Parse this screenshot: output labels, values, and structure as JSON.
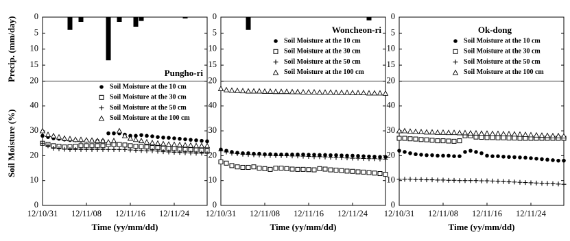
{
  "chart_data": [
    {
      "type": "combo",
      "title": "Pungho-ri",
      "xlabel": "Time (yy/mm/dd)",
      "ylabel_top": "Precip. (mm/day)",
      "ylabel": "Soil Moisture (%)",
      "x": [
        "12/10/31",
        "12/11/01",
        "12/11/02",
        "12/11/03",
        "12/11/04",
        "12/11/05",
        "12/11/06",
        "12/11/07",
        "12/11/08",
        "12/11/09",
        "12/11/10",
        "12/11/11",
        "12/11/12",
        "12/11/13",
        "12/11/14",
        "12/11/15",
        "12/11/16",
        "12/11/17",
        "12/11/18",
        "12/11/19",
        "12/11/20",
        "12/11/21",
        "12/11/22",
        "12/11/23",
        "12/11/24",
        "12/11/25",
        "12/11/26",
        "12/11/27",
        "12/11/28",
        "12/11/29",
        "12/11/30"
      ],
      "xlim": [
        "12/10/31",
        "12/11/30"
      ],
      "xticks": [
        "12/10/31",
        "12/11/08",
        "12/11/16",
        "12/11/24"
      ],
      "precip": {
        "x": [
          "12/11/05",
          "12/11/07",
          "12/11/12",
          "12/11/14",
          "12/11/17",
          "12/11/18",
          "12/11/26"
        ],
        "values": [
          4,
          1.5,
          13.5,
          1.5,
          3,
          1.2,
          0.4
        ],
        "ylim": [
          0,
          20
        ],
        "yticks": [
          0,
          5,
          10,
          15,
          20
        ],
        "color": "#000000"
      },
      "ylim": [
        0,
        50
      ],
      "yticks": [
        0,
        10,
        20,
        30,
        40
      ],
      "series": [
        {
          "name": "Soil Moisture at the 10 cm",
          "marker": "circle",
          "color": "#000000",
          "values": [
            28,
            27.5,
            27,
            26.8,
            26.5,
            26.3,
            26.2,
            26,
            26,
            26,
            26,
            26,
            29,
            29,
            29,
            28.5,
            28,
            28,
            28.3,
            28,
            27.8,
            27.5,
            27.3,
            27.2,
            27,
            26.8,
            26.6,
            26.4,
            26.2,
            26,
            25.8
          ]
        },
        {
          "name": "Soil Moisture at the 30 cm",
          "marker": "square",
          "color": "#000000",
          "values": [
            25,
            24.5,
            24,
            23.8,
            23.5,
            23.6,
            23.8,
            24,
            24,
            24,
            24,
            24,
            24.5,
            24.5,
            24.5,
            24.3,
            24,
            23.8,
            23.6,
            23.5,
            23.3,
            23.2,
            23,
            22.9,
            22.8,
            22.6,
            22.5,
            22.4,
            22.3,
            22.2,
            22
          ]
        },
        {
          "name": "Soil Moisture at the 50 cm",
          "marker": "plus",
          "color": "#000000",
          "values": [
            25,
            24,
            23,
            22.8,
            22.6,
            22.5,
            22.5,
            22.5,
            22.5,
            22.5,
            22.5,
            22.5,
            22.5,
            22.5,
            22.5,
            22.5,
            22.3,
            22.2,
            22.1,
            22,
            22,
            21.8,
            21.6,
            21.5,
            21.4,
            21.3,
            21.2,
            21.1,
            21,
            21,
            21
          ]
        },
        {
          "name": "Soil Moisture at the 100 cm",
          "marker": "triangle",
          "color": "#000000",
          "values": [
            30,
            28.5,
            28,
            27.5,
            27,
            26.8,
            26.5,
            26.5,
            26.3,
            26.2,
            26,
            26,
            25.5,
            26,
            30,
            28,
            27,
            26.5,
            26,
            25.5,
            25.2,
            25,
            24.8,
            24.6,
            24.5,
            24.4,
            24.3,
            24.2,
            24,
            24,
            24
          ]
        }
      ]
    },
    {
      "type": "combo",
      "title": "Woncheon-ri",
      "xlabel": "Time (yy/mm/dd)",
      "x": [
        "12/10/31",
        "12/11/01",
        "12/11/02",
        "12/11/03",
        "12/11/04",
        "12/11/05",
        "12/11/06",
        "12/11/07",
        "12/11/08",
        "12/11/09",
        "12/11/10",
        "12/11/11",
        "12/11/12",
        "12/11/13",
        "12/11/14",
        "12/11/15",
        "12/11/16",
        "12/11/17",
        "12/11/18",
        "12/11/19",
        "12/11/20",
        "12/11/21",
        "12/11/22",
        "12/11/23",
        "12/11/24",
        "12/11/25",
        "12/11/26",
        "12/11/27",
        "12/11/28",
        "12/11/29",
        "12/11/30"
      ],
      "xlim": [
        "12/10/31",
        "12/11/30"
      ],
      "xticks": [
        "12/10/31",
        "12/11/08",
        "12/11/16",
        "12/11/24"
      ],
      "precip": {
        "x": [
          "12/11/05",
          "12/11/27"
        ],
        "values": [
          4,
          1
        ],
        "ylim": [
          0,
          20
        ],
        "yticks": [
          0,
          5,
          10,
          15,
          20
        ],
        "color": "#000000"
      },
      "ylim": [
        0,
        50
      ],
      "yticks": [
        0,
        10,
        20,
        30,
        40
      ],
      "series": [
        {
          "name": "Soil Moisture at the 10 cm",
          "marker": "circle",
          "color": "#000000",
          "values": [
            22.5,
            22,
            21.5,
            21.2,
            21,
            21,
            20.8,
            20.8,
            20.6,
            20.6,
            20.5,
            20.5,
            20.5,
            20.5,
            20.5,
            20.5,
            20.4,
            20.4,
            20.3,
            20.3,
            20.2,
            20.2,
            20.1,
            20,
            20,
            19.9,
            19.8,
            19.7,
            19.6,
            19.5,
            19.5
          ]
        },
        {
          "name": "Soil Moisture at the 30 cm",
          "marker": "square",
          "color": "#000000",
          "values": [
            17.5,
            17,
            16,
            15.5,
            15.3,
            15.3,
            15.5,
            15,
            14.8,
            14.5,
            15,
            15,
            14.8,
            14.6,
            14.5,
            14.5,
            14.4,
            14.3,
            14.8,
            14.6,
            14.3,
            14.2,
            14,
            13.8,
            13.7,
            13.5,
            13.4,
            13.2,
            13,
            12.8,
            12.5
          ]
        },
        {
          "name": "Soil Moisture at the 50 cm",
          "marker": "plus",
          "color": "#000000",
          "values": [
            22,
            21.5,
            21,
            20.8,
            20.6,
            20.5,
            20.4,
            20.3,
            20.2,
            20.1,
            20,
            20,
            20,
            19.9,
            19.9,
            19.8,
            19.7,
            19.6,
            19.6,
            19.5,
            19.4,
            19.3,
            19.2,
            19.1,
            19,
            19,
            18.9,
            18.8,
            18.8,
            18.7,
            18.6
          ]
        },
        {
          "name": "Soil Moisture at the 100 cm",
          "marker": "triangle",
          "color": "#000000",
          "values": [
            47,
            46.5,
            46.3,
            46.2,
            46.1,
            46,
            46,
            46,
            45.9,
            45.9,
            45.8,
            45.8,
            45.8,
            45.7,
            45.7,
            45.6,
            45.6,
            45.6,
            45.5,
            45.5,
            45.5,
            45.4,
            45.4,
            45.4,
            45.3,
            45.3,
            45.3,
            45.2,
            45.2,
            45.2,
            45.1
          ]
        }
      ]
    },
    {
      "type": "combo",
      "title": "Ok-dong",
      "xlabel": "Time (yy/mm/dd)",
      "x": [
        "12/10/31",
        "12/11/01",
        "12/11/02",
        "12/11/03",
        "12/11/04",
        "12/11/05",
        "12/11/06",
        "12/11/07",
        "12/11/08",
        "12/11/09",
        "12/11/10",
        "12/11/11",
        "12/11/12",
        "12/11/13",
        "12/11/14",
        "12/11/15",
        "12/11/16",
        "12/11/17",
        "12/11/18",
        "12/11/19",
        "12/11/20",
        "12/11/21",
        "12/11/22",
        "12/11/23",
        "12/11/24",
        "12/11/25",
        "12/11/26",
        "12/11/27",
        "12/11/28",
        "12/11/29",
        "12/11/30"
      ],
      "xlim": [
        "12/10/31",
        "12/11/30"
      ],
      "xticks": [
        "12/10/31",
        "12/11/08",
        "12/11/16",
        "12/11/24"
      ],
      "precip": {
        "x": [],
        "values": [],
        "ylim": [
          0,
          20
        ],
        "yticks": [
          0,
          5,
          10,
          15,
          20
        ],
        "color": "#000000"
      },
      "ylim": [
        0,
        50
      ],
      "yticks": [
        0,
        10,
        20,
        30,
        40
      ],
      "series": [
        {
          "name": "Soil Moisture at the 10 cm",
          "marker": "circle",
          "color": "#000000",
          "values": [
            22,
            21.5,
            21,
            20.6,
            20.4,
            20.2,
            20.2,
            20,
            20,
            20,
            19.8,
            19.8,
            21.5,
            22,
            21.5,
            21,
            20,
            19.8,
            19.8,
            19.6,
            19.5,
            19.4,
            19.3,
            19.2,
            19,
            18.8,
            18.6,
            18.4,
            18.2,
            18,
            18
          ]
        },
        {
          "name": "Soil Moisture at the 30 cm",
          "marker": "square",
          "color": "#000000",
          "values": [
            27,
            27,
            26.8,
            26.7,
            26.5,
            26.4,
            26.2,
            26,
            26,
            25.9,
            25.8,
            26,
            28,
            28,
            27.5,
            27.4,
            27.3,
            27.3,
            27.2,
            27.2,
            27.1,
            27.1,
            27,
            27,
            27,
            27,
            27,
            27,
            27,
            27,
            27
          ]
        },
        {
          "name": "Soil Moisture at the 50 cm",
          "marker": "plus",
          "color": "#000000",
          "values": [
            10.5,
            10.5,
            10.5,
            10.4,
            10.4,
            10.3,
            10.3,
            10.2,
            10.2,
            10.1,
            10.1,
            10,
            10,
            10,
            10,
            9.9,
            9.9,
            9.8,
            9.7,
            9.6,
            9.5,
            9.4,
            9.3,
            9.2,
            9.1,
            9,
            8.9,
            8.8,
            8.7,
            8.6,
            8.5
          ]
        },
        {
          "name": "Soil Moisture at the 100 cm",
          "marker": "triangle",
          "color": "#000000",
          "values": [
            30,
            30,
            29.8,
            29.7,
            29.6,
            29.5,
            29.5,
            29.4,
            29.4,
            29.3,
            29.3,
            29.2,
            29.2,
            29.1,
            29.1,
            29,
            29,
            28.9,
            28.9,
            28.8,
            28.8,
            28.7,
            28.6,
            28.5,
            28.4,
            28.3,
            28.2,
            28.1,
            28,
            28,
            27.9
          ]
        }
      ]
    }
  ]
}
